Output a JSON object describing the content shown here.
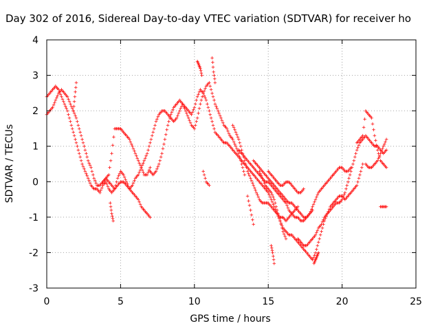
{
  "title": "Day 302 of 2016, Sidereal Day-to-day VTEC variation (SDTVAR) for receiver ho",
  "xlabel": "GPS time / hours",
  "ylabel": "SDTVAR / TECUs",
  "chart_data": {
    "type": "scatter",
    "marker": "+",
    "color": "#ff0000",
    "grid": true,
    "xlim": [
      0,
      25
    ],
    "ylim": [
      -3,
      4
    ],
    "xticks": [
      "0",
      "5",
      "10",
      "15",
      "20",
      "25"
    ],
    "yticks": [
      "-3",
      "-2",
      "-1",
      "0",
      "1",
      "2",
      "3",
      "4"
    ],
    "series": [
      {
        "x": [
          0.0,
          0.2,
          0.4,
          0.6,
          0.8,
          1.0,
          1.2,
          1.4,
          1.6,
          1.8,
          2.0,
          2.2,
          2.4,
          2.6,
          2.8,
          3.0,
          3.2,
          3.4,
          3.6,
          3.8,
          4.0,
          4.2,
          4.4,
          4.6,
          4.8,
          5.0,
          5.2,
          5.4,
          5.6,
          5.8,
          6.0,
          6.2,
          6.4,
          6.6,
          6.8,
          7.0,
          7.2,
          7.4,
          7.6,
          7.8,
          8.0,
          8.2,
          8.4,
          8.6,
          8.8,
          9.0,
          9.2,
          9.4,
          9.6,
          9.8,
          10.0,
          10.2,
          10.4,
          10.6,
          10.8,
          11.0,
          11.2,
          11.4,
          11.6,
          11.8,
          12.0,
          12.2,
          12.4,
          12.6,
          12.8,
          13.0,
          13.2,
          13.4,
          13.6,
          13.8,
          14.0,
          14.2,
          14.4,
          14.6,
          14.8,
          15.0,
          15.2,
          15.4,
          15.6,
          15.8,
          16.0,
          16.2,
          16.4,
          16.6,
          16.8,
          17.0,
          17.2,
          17.4,
          17.6,
          17.8,
          18.0,
          18.2,
          18.4,
          18.6,
          18.8,
          19.0,
          19.2,
          19.4,
          19.6,
          19.8,
          20.0,
          20.2,
          20.4,
          20.6,
          20.8,
          21.0,
          21.2,
          21.4,
          21.6,
          21.8,
          22.0,
          22.2,
          22.4,
          22.6,
          22.8,
          23.0
        ],
        "y": [
          2.4,
          2.5,
          2.6,
          2.7,
          2.6,
          2.4,
          2.2,
          2.0,
          1.7,
          1.4,
          1.1,
          0.8,
          0.5,
          0.3,
          0.1,
          -0.1,
          -0.2,
          -0.2,
          -0.3,
          -0.1,
          0.0,
          -0.2,
          -0.3,
          -0.2,
          0.1,
          0.3,
          0.2,
          0.0,
          -0.2,
          -0.1,
          0.1,
          0.2,
          0.4,
          0.6,
          0.8,
          1.1,
          1.4,
          1.7,
          1.9,
          2.0,
          2.0,
          1.9,
          1.8,
          1.7,
          1.8,
          2.0,
          2.2,
          2.1,
          2.0,
          1.9,
          2.1,
          2.4,
          2.6,
          2.5,
          2.3,
          2.0,
          1.7,
          1.4,
          1.3,
          1.2,
          1.1,
          1.1,
          1.0,
          0.9,
          0.8,
          0.7,
          0.6,
          0.5,
          0.4,
          0.3,
          0.2,
          0.1,
          0.0,
          -0.1,
          -0.2,
          -0.3,
          -0.5,
          -0.7,
          -0.9,
          -1.1,
          -1.3,
          -1.4,
          -1.5,
          -1.5,
          -1.6,
          -1.7,
          -1.8,
          -1.9,
          -2.0,
          -2.1,
          -2.2,
          -2.0,
          -1.7,
          -1.4,
          -1.1,
          -0.9,
          -0.8,
          -0.7,
          -0.6,
          -0.6,
          -0.5,
          -0.3,
          0.0,
          0.3,
          0.6,
          0.9,
          1.1,
          1.2,
          1.3,
          1.2,
          1.1,
          1.0,
          1.0,
          0.9,
          0.8,
          0.9
        ]
      },
      {
        "x": [
          0.0,
          0.2,
          0.4,
          0.6,
          0.8,
          1.0,
          1.2,
          1.4,
          1.6,
          1.8,
          2.0,
          2.2,
          2.4,
          2.6,
          2.8,
          3.0,
          3.2,
          3.4,
          3.6,
          3.8,
          4.0,
          4.2,
          4.4,
          4.6,
          4.8,
          5.0,
          5.2,
          5.4,
          5.6,
          5.8,
          6.0,
          6.2,
          6.4,
          6.6,
          6.8,
          7.0
        ],
        "y": [
          1.9,
          2.0,
          2.1,
          2.3,
          2.5,
          2.6,
          2.5,
          2.4,
          2.2,
          2.0,
          1.8,
          1.5,
          1.2,
          0.9,
          0.6,
          0.4,
          0.1,
          -0.1,
          -0.1,
          0.0,
          0.1,
          0.2,
          0.8,
          1.5,
          1.5,
          1.5,
          1.4,
          1.3,
          1.2,
          1.0,
          0.8,
          0.6,
          0.4,
          0.2,
          0.2,
          0.4
        ]
      },
      {
        "x": [
          3.8,
          4.0,
          4.2,
          4.4,
          4.6,
          4.8,
          5.0,
          5.2,
          5.4,
          5.6,
          5.8,
          6.0,
          6.2,
          6.4,
          6.6,
          6.8,
          7.0
        ],
        "y": [
          0.0,
          0.1,
          0.0,
          -0.1,
          -0.2,
          -0.1,
          0.0,
          0.0,
          -0.1,
          -0.2,
          -0.3,
          -0.4,
          -0.5,
          -0.7,
          -0.8,
          -0.9,
          -1.0
        ]
      },
      {
        "x": [
          7.0,
          7.2,
          7.4,
          7.6,
          7.8,
          8.0,
          8.2,
          8.4,
          8.6,
          8.8,
          9.0,
          9.2,
          9.4,
          9.6,
          9.8,
          10.0,
          10.2,
          10.4,
          10.6,
          10.8,
          11.0,
          11.2,
          11.4,
          11.6,
          11.8,
          12.0,
          12.2,
          12.4,
          12.6,
          12.8,
          13.0,
          13.2,
          13.4
        ],
        "y": [
          0.3,
          0.2,
          0.3,
          0.5,
          0.8,
          1.2,
          1.6,
          1.9,
          2.1,
          2.2,
          2.3,
          2.2,
          2.0,
          1.8,
          1.6,
          1.5,
          1.8,
          2.2,
          2.5,
          2.7,
          2.8,
          2.5,
          2.2,
          2.0,
          1.8,
          1.6,
          1.5,
          1.3,
          1.2,
          1.0,
          0.8,
          0.5,
          0.2
        ]
      },
      {
        "x": [
          12.6,
          12.8,
          13.0,
          13.2,
          13.4,
          13.6,
          13.8,
          14.0,
          14.2,
          14.4,
          14.6,
          14.8,
          15.0,
          15.2,
          15.4,
          15.6,
          15.8,
          16.0,
          16.2,
          16.4,
          16.6,
          16.8,
          17.0
        ],
        "y": [
          1.6,
          1.4,
          1.2,
          0.9,
          0.6,
          0.3,
          0.1,
          -0.1,
          -0.3,
          -0.5,
          -0.6,
          -0.6,
          -0.6,
          -0.7,
          -0.8,
          -0.9,
          -1.0,
          -1.0,
          -1.1,
          -1.0,
          -0.9,
          -0.8,
          -0.7
        ]
      },
      {
        "x": [
          13.0,
          13.2,
          13.4,
          13.6,
          13.8,
          14.0,
          14.2,
          14.4,
          14.6,
          14.8,
          15.0,
          15.2,
          15.4,
          15.6,
          15.8,
          16.0,
          16.2,
          16.4,
          16.6,
          16.8,
          17.0,
          17.2,
          17.4,
          17.6,
          17.8,
          18.0,
          18.2,
          18.4,
          18.6,
          18.8,
          19.0,
          19.2,
          19.4,
          19.6,
          19.8,
          20.0,
          20.2,
          20.4,
          20.6
        ],
        "y": [
          0.9,
          0.8,
          0.7,
          0.6,
          0.5,
          0.4,
          0.3,
          0.2,
          0.1,
          0.0,
          0.0,
          -0.1,
          -0.2,
          -0.3,
          -0.4,
          -0.5,
          -0.6,
          -0.8,
          -0.9,
          -1.0,
          -1.0,
          -1.1,
          -1.1,
          -1.0,
          -0.9,
          -0.7,
          -0.5,
          -0.3,
          -0.2,
          -0.1,
          0.0,
          0.1,
          0.2,
          0.3,
          0.4,
          0.4,
          0.3,
          0.3,
          0.4
        ]
      },
      {
        "x": [
          14.0,
          14.2,
          14.4,
          14.6,
          14.8,
          15.0,
          15.2,
          15.4,
          15.6,
          15.8,
          16.0,
          16.2,
          16.4,
          16.6,
          16.8,
          17.0,
          17.2,
          17.4,
          17.6,
          17.8,
          18.0
        ],
        "y": [
          0.6,
          0.5,
          0.4,
          0.3,
          0.2,
          0.1,
          0.0,
          -0.1,
          -0.2,
          -0.3,
          -0.4,
          -0.5,
          -0.6,
          -0.6,
          -0.7,
          -0.8,
          -0.9,
          -1.0,
          -1.0,
          -0.9,
          -0.8
        ]
      },
      {
        "x": [
          14.4,
          14.6,
          14.8,
          15.0,
          15.2,
          15.4,
          15.6,
          15.8,
          16.0,
          16.2
        ],
        "y": [
          0.3,
          0.1,
          -0.1,
          -0.2,
          -0.3,
          -0.5,
          -0.8,
          -1.1,
          -1.4,
          -1.6
        ]
      },
      {
        "x": [
          15.0,
          15.2,
          15.4,
          15.6,
          15.8,
          16.0,
          16.2,
          16.4,
          16.6,
          16.8,
          17.0,
          17.2,
          17.4
        ],
        "y": [
          0.3,
          0.2,
          0.1,
          0.0,
          -0.1,
          -0.1,
          0.0,
          0.0,
          -0.1,
          -0.2,
          -0.3,
          -0.3,
          -0.2
        ]
      },
      {
        "x": [
          17.0,
          17.2,
          17.4,
          17.6,
          17.8,
          18.0,
          18.2,
          18.4,
          18.6,
          18.8,
          19.0,
          19.2,
          19.4,
          19.6,
          19.8,
          20.0,
          20.2,
          20.4,
          20.6,
          20.8,
          21.0,
          21.2,
          21.4
        ],
        "y": [
          -1.6,
          -1.7,
          -1.8,
          -1.8,
          -1.7,
          -1.6,
          -1.5,
          -1.3,
          -1.2,
          -1.0,
          -0.9,
          -0.7,
          -0.6,
          -0.5,
          -0.4,
          -0.4,
          -0.5,
          -0.4,
          -0.3,
          -0.2,
          -0.1,
          0.2,
          0.5
        ]
      },
      {
        "x": [
          21.0,
          21.2,
          21.4,
          21.6,
          21.8,
          22.0,
          22.2,
          22.4,
          22.6,
          22.8,
          23.0
        ],
        "y": [
          1.1,
          1.2,
          1.3,
          2.0,
          1.9,
          1.8,
          1.3,
          0.9,
          0.6,
          0.5,
          0.4
        ]
      },
      {
        "x": [
          21.6,
          21.8,
          22.0,
          22.2,
          22.4,
          22.6,
          22.8,
          23.0
        ],
        "y": [
          0.5,
          0.4,
          0.4,
          0.5,
          0.6,
          0.8,
          1.0,
          1.2
        ]
      },
      {
        "x": [
          22.6,
          22.8,
          23.0
        ],
        "y": [
          -0.7,
          -0.7,
          -0.7
        ]
      },
      {
        "x": [
          1.8,
          1.9,
          2.0
        ],
        "y": [
          2.0,
          2.4,
          2.8
        ]
      },
      {
        "x": [
          10.2,
          10.3,
          10.4,
          10.5
        ],
        "y": [
          3.4,
          3.3,
          3.2,
          3.0
        ]
      },
      {
        "x": [
          11.2,
          11.3,
          11.4
        ],
        "y": [
          3.5,
          3.1,
          2.8
        ]
      },
      {
        "x": [
          4.3,
          4.4,
          4.5
        ],
        "y": [
          -0.6,
          -0.9,
          -1.1
        ]
      },
      {
        "x": [
          15.2,
          15.3,
          15.4
        ],
        "y": [
          -1.8,
          -2.0,
          -2.3
        ]
      },
      {
        "x": [
          18.1,
          18.2,
          18.3,
          18.4
        ],
        "y": [
          -2.3,
          -2.2,
          -2.1,
          -2.0
        ]
      },
      {
        "x": [
          10.6,
          10.8,
          11.0
        ],
        "y": [
          0.3,
          0.0,
          -0.1
        ]
      },
      {
        "x": [
          13.6,
          13.8,
          14.0
        ],
        "y": [
          -0.4,
          -0.8,
          -1.2
        ]
      }
    ]
  }
}
